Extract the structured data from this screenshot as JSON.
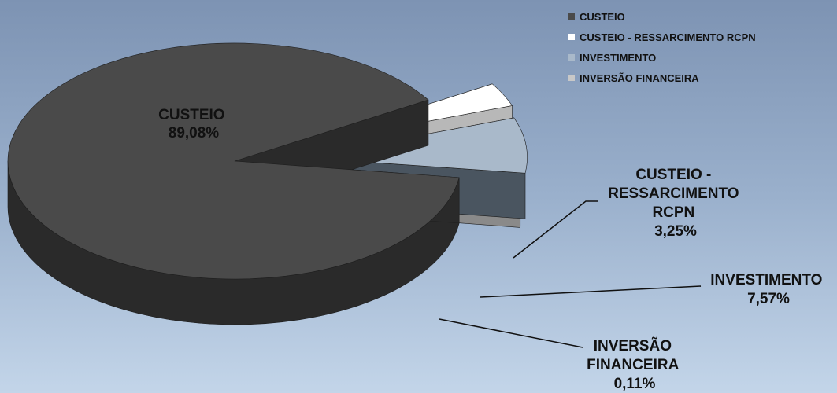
{
  "chart_data": {
    "type": "pie",
    "categories": [
      "CUSTEIO",
      "CUSTEIO - RESSARCIMENTO RCPN",
      "INVESTIMENTO",
      "INVERSÃO FINANCEIRA"
    ],
    "values": [
      89.08,
      3.25,
      7.57,
      0.11
    ],
    "value_labels": [
      "89,08%",
      "3,25%",
      "7,57%",
      "0,11%"
    ],
    "slice_labels": [
      [
        "CUSTEIO"
      ],
      [
        "CUSTEIO -",
        "RESSARCIMENTO",
        "RCPN"
      ],
      [
        "INVESTIMENTO"
      ],
      [
        "INVERSÃO",
        "FINANCEIRA"
      ]
    ],
    "colors": [
      "#4a4a4a",
      "#ffffff",
      "#a9b9ca",
      "#c8c8c8"
    ],
    "side_colors": [
      "#2a2a2a",
      "#b8b8b8",
      "#4a5560",
      "#8a8a8a"
    ],
    "legend": {
      "position": "top-right"
    }
  }
}
